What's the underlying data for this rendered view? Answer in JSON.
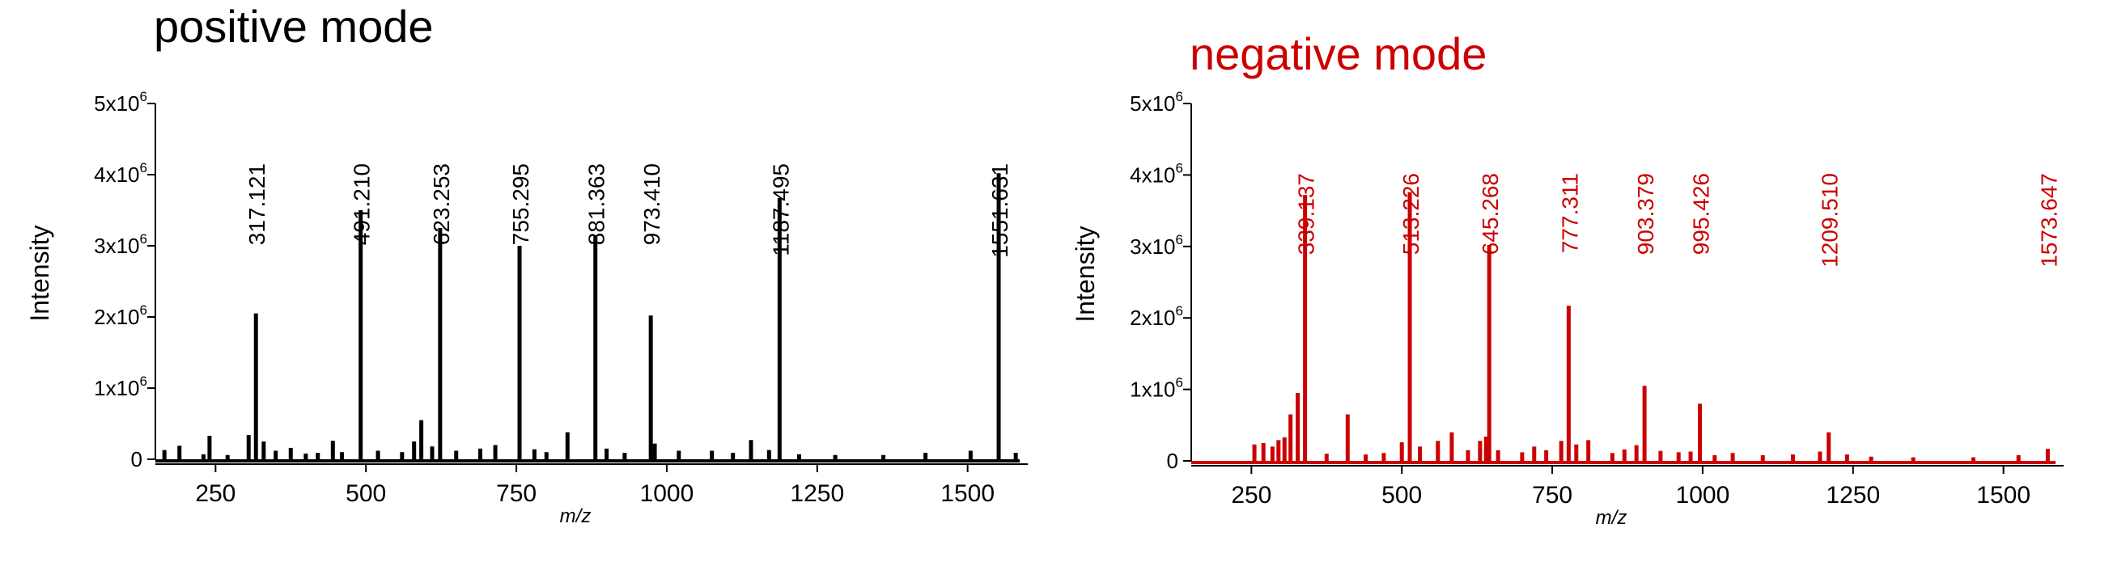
{
  "chart_data": [
    {
      "type": "line",
      "title": "positive mode",
      "xlabel": "m/z",
      "ylabel": "Intensity",
      "color": "#000000",
      "xlim": [
        150,
        1600
      ],
      "ylim": [
        0,
        5000000
      ],
      "x_ticks": [
        "250",
        "500",
        "750",
        "1000",
        "1250",
        "1500"
      ],
      "x_tick_values": [
        250,
        500,
        750,
        1000,
        1250,
        1500
      ],
      "y_ticks": [
        "0",
        "1x10",
        "2x10",
        "3x10",
        "4x10",
        "5x10"
      ],
      "y_tick_values": [
        0,
        1000000,
        2000000,
        3000000,
        4000000,
        5000000
      ],
      "y_tick_exp": "6",
      "peaks": [
        {
          "x": 165,
          "y": 130000
        },
        {
          "x": 190,
          "y": 190000
        },
        {
          "x": 230,
          "y": 70000
        },
        {
          "x": 240,
          "y": 330000
        },
        {
          "x": 270,
          "y": 60000
        },
        {
          "x": 305,
          "y": 340000
        },
        {
          "x": 317.121,
          "y": 2050000
        },
        {
          "x": 330,
          "y": 250000
        },
        {
          "x": 350,
          "y": 120000
        },
        {
          "x": 375,
          "y": 160000
        },
        {
          "x": 400,
          "y": 80000
        },
        {
          "x": 420,
          "y": 90000
        },
        {
          "x": 445,
          "y": 260000
        },
        {
          "x": 460,
          "y": 100000
        },
        {
          "x": 491.21,
          "y": 3500000
        },
        {
          "x": 520,
          "y": 120000
        },
        {
          "x": 560,
          "y": 100000
        },
        {
          "x": 580,
          "y": 250000
        },
        {
          "x": 592,
          "y": 550000
        },
        {
          "x": 610,
          "y": 180000
        },
        {
          "x": 623.253,
          "y": 3250000
        },
        {
          "x": 650,
          "y": 120000
        },
        {
          "x": 690,
          "y": 150000
        },
        {
          "x": 715,
          "y": 200000
        },
        {
          "x": 755.295,
          "y": 3000000
        },
        {
          "x": 780,
          "y": 140000
        },
        {
          "x": 800,
          "y": 100000
        },
        {
          "x": 835,
          "y": 380000
        },
        {
          "x": 881.363,
          "y": 3150000
        },
        {
          "x": 900,
          "y": 150000
        },
        {
          "x": 930,
          "y": 90000
        },
        {
          "x": 973.41,
          "y": 2020000
        },
        {
          "x": 980,
          "y": 220000
        },
        {
          "x": 1020,
          "y": 120000
        },
        {
          "x": 1075,
          "y": 120000
        },
        {
          "x": 1110,
          "y": 90000
        },
        {
          "x": 1140,
          "y": 270000
        },
        {
          "x": 1170,
          "y": 130000
        },
        {
          "x": 1187.495,
          "y": 3670000
        },
        {
          "x": 1220,
          "y": 70000
        },
        {
          "x": 1280,
          "y": 60000
        },
        {
          "x": 1360,
          "y": 60000
        },
        {
          "x": 1430,
          "y": 90000
        },
        {
          "x": 1505,
          "y": 120000
        },
        {
          "x": 1551.631,
          "y": 4020000
        },
        {
          "x": 1580,
          "y": 90000
        }
      ],
      "annotations": [
        {
          "x": 317.121,
          "label": "317.121"
        },
        {
          "x": 491.21,
          "label": "491.210"
        },
        {
          "x": 623.253,
          "label": "623.253"
        },
        {
          "x": 755.295,
          "label": "755.295"
        },
        {
          "x": 881.363,
          "label": "881.363"
        },
        {
          "x": 973.41,
          "label": "973.410"
        },
        {
          "x": 1187.495,
          "label": "1187.495"
        },
        {
          "x": 1551.631,
          "label": "1551.631"
        }
      ]
    },
    {
      "type": "line",
      "title": "negative mode",
      "xlabel": "m/z",
      "ylabel": "Intensity",
      "color": "#cc0000",
      "xlim": [
        150,
        1600
      ],
      "ylim": [
        0,
        5000000
      ],
      "x_ticks": [
        "250",
        "500",
        "750",
        "1000",
        "1250",
        "1500"
      ],
      "x_tick_values": [
        250,
        500,
        750,
        1000,
        1250,
        1500
      ],
      "y_ticks": [
        "0",
        "1x10",
        "2x10",
        "3x10",
        "4x10",
        "5x10"
      ],
      "y_tick_values": [
        0,
        1000000,
        2000000,
        3000000,
        4000000,
        5000000
      ],
      "y_tick_exp": "6",
      "peaks": [
        {
          "x": 255,
          "y": 230000
        },
        {
          "x": 270,
          "y": 250000
        },
        {
          "x": 285,
          "y": 200000
        },
        {
          "x": 295,
          "y": 290000
        },
        {
          "x": 305,
          "y": 330000
        },
        {
          "x": 315,
          "y": 650000
        },
        {
          "x": 327,
          "y": 950000
        },
        {
          "x": 339.137,
          "y": 3720000
        },
        {
          "x": 375,
          "y": 100000
        },
        {
          "x": 410,
          "y": 650000
        },
        {
          "x": 440,
          "y": 90000
        },
        {
          "x": 470,
          "y": 110000
        },
        {
          "x": 500,
          "y": 260000
        },
        {
          "x": 513.226,
          "y": 3760000
        },
        {
          "x": 530,
          "y": 200000
        },
        {
          "x": 560,
          "y": 280000
        },
        {
          "x": 583,
          "y": 400000
        },
        {
          "x": 610,
          "y": 150000
        },
        {
          "x": 630,
          "y": 280000
        },
        {
          "x": 640,
          "y": 340000
        },
        {
          "x": 645.268,
          "y": 3020000
        },
        {
          "x": 660,
          "y": 150000
        },
        {
          "x": 700,
          "y": 120000
        },
        {
          "x": 720,
          "y": 200000
        },
        {
          "x": 740,
          "y": 150000
        },
        {
          "x": 765,
          "y": 280000
        },
        {
          "x": 777.311,
          "y": 2170000
        },
        {
          "x": 790,
          "y": 230000
        },
        {
          "x": 810,
          "y": 290000
        },
        {
          "x": 850,
          "y": 110000
        },
        {
          "x": 870,
          "y": 160000
        },
        {
          "x": 890,
          "y": 220000
        },
        {
          "x": 903.379,
          "y": 1050000
        },
        {
          "x": 930,
          "y": 140000
        },
        {
          "x": 960,
          "y": 120000
        },
        {
          "x": 980,
          "y": 130000
        },
        {
          "x": 995.426,
          "y": 800000
        },
        {
          "x": 1020,
          "y": 80000
        },
        {
          "x": 1050,
          "y": 110000
        },
        {
          "x": 1100,
          "y": 80000
        },
        {
          "x": 1150,
          "y": 90000
        },
        {
          "x": 1195,
          "y": 130000
        },
        {
          "x": 1209.51,
          "y": 400000
        },
        {
          "x": 1240,
          "y": 90000
        },
        {
          "x": 1280,
          "y": 60000
        },
        {
          "x": 1350,
          "y": 50000
        },
        {
          "x": 1450,
          "y": 50000
        },
        {
          "x": 1525,
          "y": 80000
        },
        {
          "x": 1573.647,
          "y": 170000
        }
      ],
      "annotations": [
        {
          "x": 339.137,
          "label": "339.137"
        },
        {
          "x": 513.226,
          "label": "513.226"
        },
        {
          "x": 645.268,
          "label": "645.268"
        },
        {
          "x": 777.311,
          "label": "777.311"
        },
        {
          "x": 903.379,
          "label": "903.379"
        },
        {
          "x": 995.426,
          "label": "995.426"
        },
        {
          "x": 1209.51,
          "label": "1209.510"
        },
        {
          "x": 1573.647,
          "label": "1573.647"
        }
      ]
    }
  ]
}
